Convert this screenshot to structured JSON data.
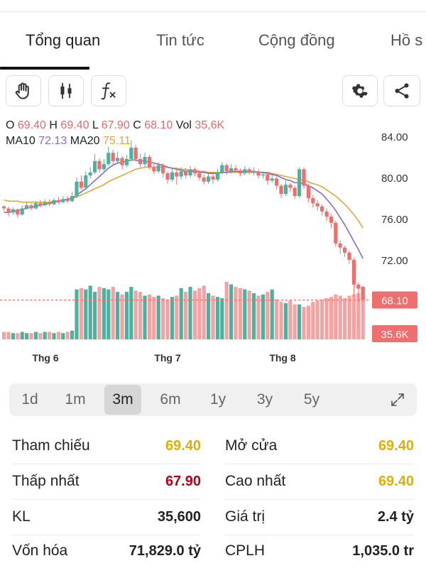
{
  "tabs": [
    {
      "label": "Tổng quan",
      "active": true
    },
    {
      "label": "Tin tức",
      "active": false
    },
    {
      "label": "Cộng đồng",
      "active": false
    },
    {
      "label": "Hồ s",
      "active": false
    }
  ],
  "toolbar": {
    "left_icons": [
      "hand-icon",
      "candlestick-icon",
      "function-icon"
    ],
    "right_icons": [
      "gear-icon",
      "share-icon"
    ]
  },
  "ohlc": {
    "o_label": "O",
    "o": "69.40",
    "h_label": "H",
    "h": "69.40",
    "l_label": "L",
    "l": "67.90",
    "c_label": "C",
    "c": "68.10",
    "vol_label": "Vol",
    "vol": "35,6K"
  },
  "ma": {
    "ma10_label": "MA10",
    "ma10": "72.13",
    "ma20_label": "MA20",
    "ma20": "75.11"
  },
  "colors": {
    "up": "#4fb0a0",
    "down": "#ef6f6f",
    "down_volume": "#f4a3a3",
    "ma10": "#8a6bbf",
    "ma20": "#e0a83a",
    "price_tag": "#ef6f6f",
    "gold": "#e0b000",
    "dark_red": "#b3001b"
  },
  "chart_data": {
    "type": "candlestick",
    "y_ticks": [
      "84.00",
      "80.00",
      "76.00",
      "72.00"
    ],
    "ylim": [
      66.8,
      85.6
    ],
    "x_labels": [
      "Thg 6",
      "Thg 7",
      "Thg 8"
    ],
    "last_price_tag": "68.10",
    "volume_tag": "35.6K",
    "candles": [
      [
        77.2,
        77.0,
        77.3,
        76.7
      ],
      [
        77.0,
        76.6,
        77.2,
        76.2
      ],
      [
        76.6,
        76.9,
        77.1,
        76.4
      ],
      [
        76.9,
        76.4,
        77.0,
        76.1
      ],
      [
        76.4,
        77.0,
        77.3,
        76.3
      ],
      [
        77.0,
        77.3,
        77.6,
        76.9
      ],
      [
        77.3,
        77.0,
        77.5,
        76.8
      ],
      [
        77.0,
        77.5,
        77.7,
        76.9
      ],
      [
        77.5,
        77.3,
        77.8,
        77.1
      ],
      [
        77.3,
        77.6,
        77.9,
        77.2
      ],
      [
        77.6,
        77.4,
        77.9,
        77.2
      ],
      [
        77.4,
        77.8,
        78.0,
        77.3
      ],
      [
        77.8,
        77.6,
        78.1,
        77.4
      ],
      [
        77.6,
        77.9,
        78.2,
        77.5
      ],
      [
        77.9,
        77.7,
        78.2,
        77.5
      ],
      [
        77.7,
        78.2,
        78.6,
        77.6
      ],
      [
        78.2,
        79.6,
        80.0,
        78.0
      ],
      [
        79.6,
        79.0,
        80.2,
        78.8
      ],
      [
        79.0,
        80.2,
        80.6,
        78.9
      ],
      [
        80.2,
        80.5,
        81.0,
        79.9
      ],
      [
        80.5,
        81.6,
        82.3,
        80.3
      ],
      [
        81.6,
        80.8,
        81.9,
        80.5
      ],
      [
        80.8,
        81.3,
        81.8,
        80.6
      ],
      [
        81.3,
        82.4,
        83.0,
        81.1
      ],
      [
        82.4,
        81.6,
        82.7,
        81.2
      ],
      [
        81.6,
        81.9,
        82.5,
        81.4
      ],
      [
        81.9,
        81.2,
        82.1,
        80.8
      ],
      [
        81.2,
        81.8,
        82.2,
        81.0
      ],
      [
        81.8,
        82.9,
        83.6,
        81.6
      ],
      [
        82.9,
        81.8,
        83.2,
        81.5
      ],
      [
        81.8,
        81.3,
        82.3,
        81.0
      ],
      [
        81.3,
        82.0,
        82.4,
        81.0
      ],
      [
        82.0,
        81.0,
        82.2,
        80.8
      ],
      [
        81.0,
        80.6,
        81.3,
        80.3
      ],
      [
        80.6,
        81.2,
        81.5,
        80.4
      ],
      [
        81.2,
        80.4,
        81.4,
        80.0
      ],
      [
        80.4,
        79.8,
        80.6,
        79.4
      ],
      [
        79.8,
        80.5,
        80.9,
        79.6
      ],
      [
        80.5,
        80.1,
        80.8,
        79.3
      ],
      [
        80.1,
        80.6,
        81.0,
        79.8
      ],
      [
        80.6,
        80.2,
        80.9,
        79.9
      ],
      [
        80.2,
        80.8,
        81.1,
        80.0
      ],
      [
        80.8,
        80.4,
        81.0,
        80.1
      ],
      [
        80.4,
        80.0,
        80.7,
        79.7
      ],
      [
        80.0,
        79.6,
        80.3,
        79.3
      ],
      [
        79.6,
        80.1,
        80.4,
        79.4
      ],
      [
        80.1,
        79.8,
        80.3,
        79.4
      ],
      [
        79.8,
        80.5,
        80.8,
        79.6
      ],
      [
        80.5,
        81.2,
        81.5,
        80.3
      ],
      [
        81.2,
        80.6,
        81.4,
        80.3
      ],
      [
        80.6,
        80.9,
        81.3,
        80.4
      ],
      [
        80.9,
        80.7,
        81.2,
        80.5
      ],
      [
        80.7,
        80.4,
        80.9,
        80.1
      ],
      [
        80.4,
        80.8,
        81.1,
        80.2
      ],
      [
        80.8,
        80.5,
        81.0,
        80.3
      ],
      [
        80.5,
        80.6,
        81.0,
        80.2
      ],
      [
        80.6,
        80.2,
        80.8,
        79.9
      ],
      [
        80.2,
        80.3,
        80.6,
        79.9
      ],
      [
        80.3,
        79.7,
        80.5,
        79.3
      ],
      [
        79.7,
        79.9,
        80.3,
        79.5
      ],
      [
        79.9,
        79.2,
        80.1,
        78.8
      ],
      [
        79.2,
        78.4,
        79.4,
        78.0
      ],
      [
        78.4,
        79.3,
        79.7,
        78.2
      ],
      [
        79.3,
        79.0,
        79.5,
        78.6
      ],
      [
        79.0,
        78.2,
        79.2,
        77.9
      ],
      [
        78.2,
        80.8,
        81.0,
        78.0
      ],
      [
        80.8,
        79.2,
        81.0,
        78.9
      ],
      [
        79.2,
        78.0,
        79.4,
        77.6
      ],
      [
        78.0,
        77.5,
        78.3,
        77.1
      ],
      [
        77.5,
        77.2,
        77.8,
        76.8
      ],
      [
        77.2,
        76.7,
        77.4,
        76.3
      ],
      [
        76.7,
        76.2,
        77.0,
        75.8
      ],
      [
        76.2,
        75.6,
        76.5,
        75.1
      ],
      [
        75.6,
        73.6,
        75.8,
        73.3
      ],
      [
        73.6,
        73.2,
        73.9,
        72.6
      ],
      [
        73.2,
        72.7,
        73.4,
        72.3
      ],
      [
        72.7,
        72.0,
        72.9,
        71.6
      ],
      [
        72.0,
        69.6,
        72.2,
        68.4
      ],
      [
        69.6,
        69.2,
        69.8,
        67.9
      ],
      [
        69.4,
        68.1,
        69.4,
        67.9
      ]
    ],
    "ma10": [
      76.6,
      76.6,
      76.7,
      76.8,
      76.9,
      77.0,
      77.1,
      77.2,
      77.3,
      77.4,
      77.5,
      77.6,
      77.7,
      77.8,
      77.9,
      78.0,
      78.3,
      78.6,
      78.9,
      79.3,
      79.7,
      80.1,
      80.5,
      80.9,
      81.2,
      81.4,
      81.5,
      81.6,
      81.7,
      81.7,
      81.6,
      81.6,
      81.5,
      81.4,
      81.3,
      81.2,
      81.0,
      80.9,
      80.8,
      80.7,
      80.6,
      80.6,
      80.6,
      80.5,
      80.5,
      80.4,
      80.4,
      80.4,
      80.5,
      80.5,
      80.6,
      80.6,
      80.6,
      80.6,
      80.6,
      80.6,
      80.5,
      80.5,
      80.4,
      80.3,
      80.2,
      80.0,
      79.8,
      79.7,
      79.5,
      79.5,
      79.4,
      79.2,
      79.0,
      78.7,
      78.4,
      77.9,
      77.4,
      76.8,
      76.1,
      75.4,
      74.6,
      73.8,
      73.0,
      72.13
    ],
    "ma20": [
      77.8,
      77.7,
      77.7,
      77.7,
      77.6,
      77.6,
      77.6,
      77.6,
      77.6,
      77.6,
      77.6,
      77.7,
      77.7,
      77.8,
      77.9,
      78.0,
      78.1,
      78.3,
      78.5,
      78.7,
      78.9,
      79.1,
      79.3,
      79.6,
      79.8,
      80.0,
      80.2,
      80.4,
      80.6,
      80.8,
      80.9,
      81.0,
      81.0,
      81.0,
      81.0,
      81.0,
      81.0,
      80.9,
      80.9,
      80.8,
      80.8,
      80.7,
      80.7,
      80.6,
      80.6,
      80.5,
      80.5,
      80.5,
      80.5,
      80.5,
      80.5,
      80.5,
      80.5,
      80.5,
      80.5,
      80.5,
      80.5,
      80.5,
      80.5,
      80.4,
      80.3,
      80.2,
      80.1,
      80.0,
      79.9,
      79.8,
      79.7,
      79.6,
      79.4,
      79.3,
      79.1,
      78.8,
      78.5,
      78.2,
      77.8,
      77.4,
      76.9,
      76.4,
      75.8,
      75.11
    ],
    "volumes": [
      12,
      12,
      10,
      10,
      12,
      10,
      10,
      12,
      10,
      12,
      12,
      10,
      12,
      10,
      12,
      14,
      80,
      82,
      80,
      86,
      76,
      84,
      82,
      80,
      84,
      76,
      72,
      76,
      84,
      78,
      76,
      70,
      72,
      68,
      70,
      66,
      64,
      68,
      70,
      82,
      76,
      84,
      78,
      82,
      86,
      74,
      70,
      68,
      66,
      92,
      88,
      84,
      82,
      80,
      78,
      74,
      70,
      72,
      76,
      80,
      64,
      60,
      58,
      62,
      56,
      56,
      52,
      54,
      60,
      62,
      64,
      66,
      68,
      72,
      70,
      66,
      70,
      72,
      74,
      72
    ]
  },
  "ranges": [
    "1d",
    "1m",
    "3m",
    "6m",
    "1y",
    "3y",
    "5y"
  ],
  "active_range": "3m",
  "stats": {
    "ref_label": "Tham chiếu",
    "ref_value": "69.40",
    "open_label": "Mở cửa",
    "open_value": "69.40",
    "low_label": "Thấp nhất",
    "low_value": "67.90",
    "high_label": "Cao nhất",
    "high_value": "69.40",
    "vol_label": "KL",
    "vol_value": "35,600",
    "val_label": "Giá trị",
    "val_value": "2.4 tỷ",
    "cap_label": "Vốn hóa",
    "cap_value": "71,829.0 tỷ",
    "shares_label": "CPLH",
    "shares_value": "1,035.0 tr"
  }
}
